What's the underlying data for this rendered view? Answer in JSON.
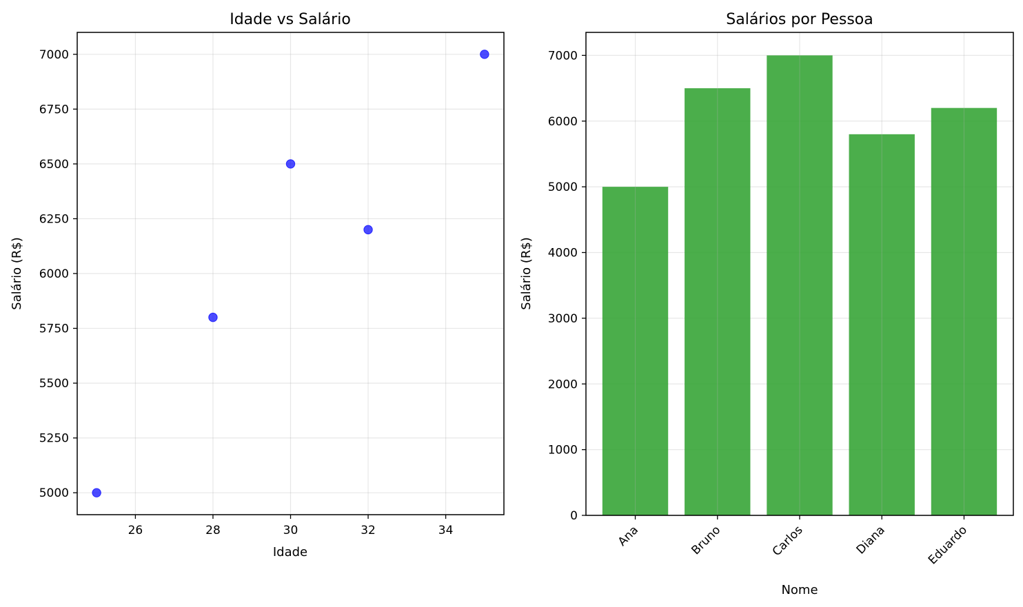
{
  "chart_data": [
    {
      "type": "scatter",
      "title": "Idade vs Salário",
      "xlabel": "Idade",
      "ylabel": "Salário (R$)",
      "x": [
        25,
        28,
        30,
        32,
        35
      ],
      "y": [
        5000,
        5800,
        6500,
        6200,
        7000
      ],
      "xlim": [
        24.5,
        35.5
      ],
      "ylim": [
        4900,
        7100
      ],
      "xticks": [
        26,
        28,
        30,
        32,
        34
      ],
      "yticks": [
        5000,
        5250,
        5500,
        5750,
        6000,
        6250,
        6500,
        6750,
        7000
      ],
      "grid": true,
      "color": "#0000ff"
    },
    {
      "type": "bar",
      "title": "Salários por Pessoa",
      "xlabel": "Nome",
      "ylabel": "Salário (R$)",
      "categories": [
        "Ana",
        "Bruno",
        "Carlos",
        "Diana",
        "Eduardo"
      ],
      "values": [
        5000,
        6500,
        7000,
        5800,
        6200
      ],
      "ylim": [
        0,
        7350
      ],
      "yticks": [
        0,
        1000,
        2000,
        3000,
        4000,
        5000,
        6000,
        7000
      ],
      "grid": true,
      "color": "#2ca02c"
    }
  ]
}
